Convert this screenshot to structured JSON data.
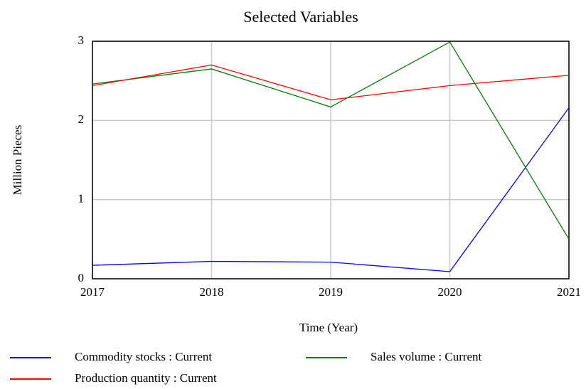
{
  "chart_data": {
    "type": "line",
    "title": "Selected Variables",
    "x_label": "Time (Year)",
    "y_label": "Million Pieces",
    "x": [
      2017,
      2018,
      2019,
      2020,
      2021
    ],
    "xlim": [
      2017,
      2021
    ],
    "xticks": [
      2017,
      2018,
      2019,
      2020,
      2021
    ],
    "ylim": [
      0,
      3
    ],
    "yticks": [
      0,
      1,
      2,
      3
    ],
    "grid": true,
    "legend": "bottom",
    "series": [
      {
        "name": "Commodity stocks : Current",
        "color": "#0000ff",
        "values": [
          0.17,
          0.22,
          0.21,
          0.09,
          2.16
        ]
      },
      {
        "name": "Sales volume : Current",
        "color": "#008000",
        "values": [
          2.46,
          2.65,
          2.17,
          2.99,
          0.5
        ]
      },
      {
        "name": "Production quantity : Current",
        "color": "#ff0000",
        "values": [
          2.44,
          2.7,
          2.26,
          2.44,
          2.57
        ]
      }
    ]
  }
}
